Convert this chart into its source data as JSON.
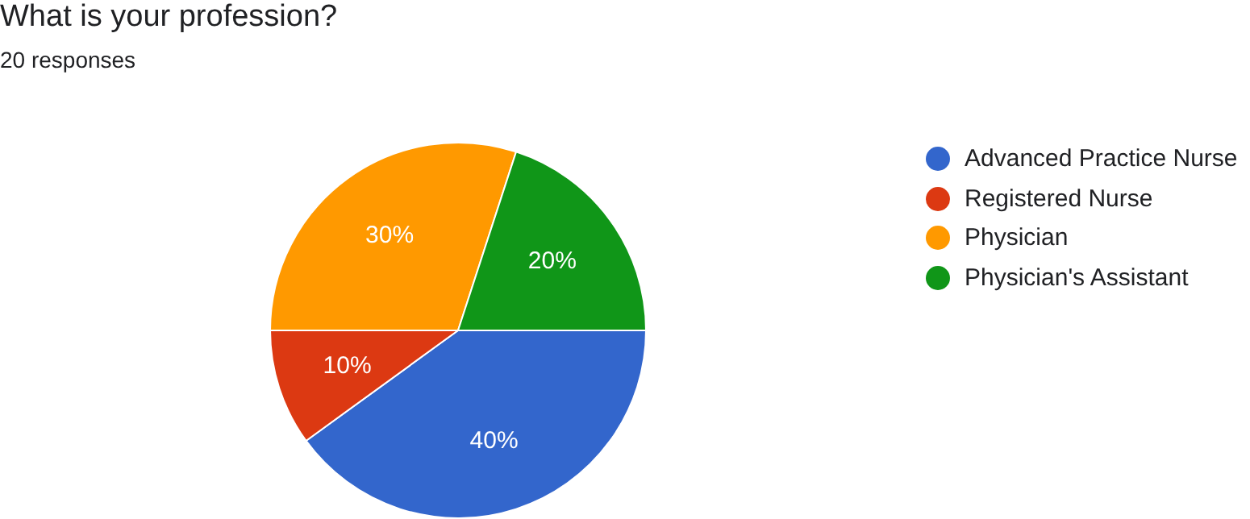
{
  "chart_data": {
    "type": "pie",
    "title": "What is your profession?",
    "subtitle": "20 responses",
    "categories": [
      "Advanced Practice Nurse",
      "Registered Nurse",
      "Physician",
      "Physician's Assistant"
    ],
    "values": [
      40,
      10,
      30,
      20
    ],
    "colors": [
      "#3366cc",
      "#dc3912",
      "#ff9900",
      "#109618"
    ],
    "value_labels": [
      "40%",
      "10%",
      "30%",
      "20%"
    ],
    "legend": "right"
  }
}
